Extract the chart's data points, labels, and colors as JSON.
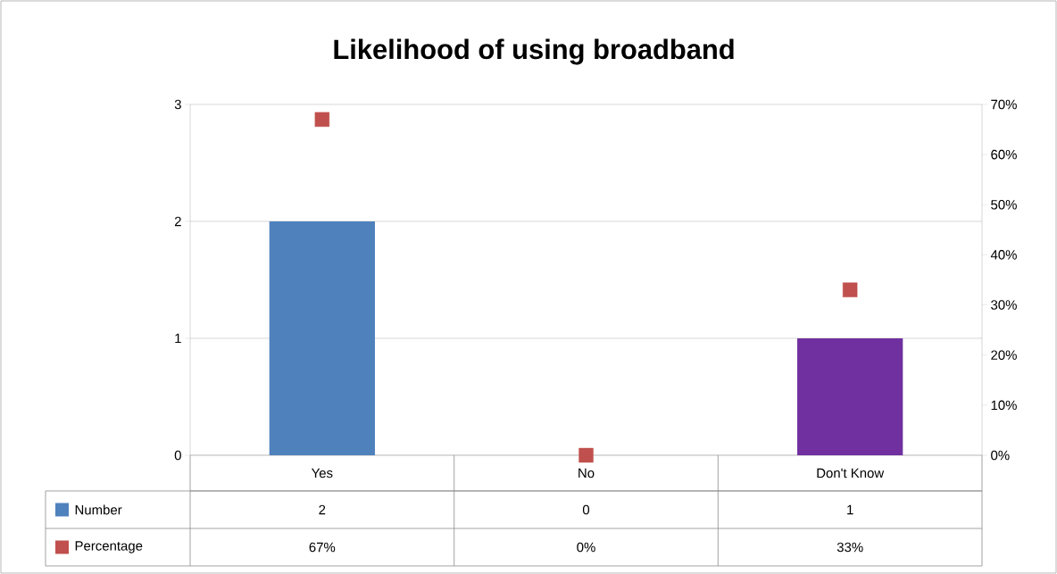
{
  "chart_data": {
    "type": "bar",
    "title": "Likelihood of using broadband",
    "categories": [
      "Yes",
      "No",
      "Don't Know"
    ],
    "series": [
      {
        "name": "Number",
        "color": "#4f81bd",
        "colors": [
          "#4f81bd",
          "#4f81bd",
          "#7030a0"
        ],
        "values": [
          2,
          0,
          1
        ],
        "value_labels": [
          "2",
          "0",
          "1"
        ]
      },
      {
        "name": "Percentage",
        "type": "scatter",
        "axis": "y2",
        "marker": "square",
        "color": "#c0504d",
        "values": [
          67,
          0,
          33
        ],
        "value_labels": [
          "67%",
          "0%",
          "33%"
        ]
      }
    ],
    "ylim": [
      0,
      3
    ],
    "yticks": [
      0,
      1,
      2,
      3
    ],
    "y2lim": [
      0,
      70
    ],
    "y2ticks": [
      {
        "value": 0,
        "label": "0%"
      },
      {
        "value": 10,
        "label": "10%"
      },
      {
        "value": 20,
        "label": "20%"
      },
      {
        "value": 30,
        "label": "30%"
      },
      {
        "value": 40,
        "label": "40%"
      },
      {
        "value": 50,
        "label": "50%"
      },
      {
        "value": 60,
        "label": "60%"
      },
      {
        "value": 70,
        "label": "70%"
      }
    ],
    "grid": "y",
    "legend": "bottom"
  }
}
